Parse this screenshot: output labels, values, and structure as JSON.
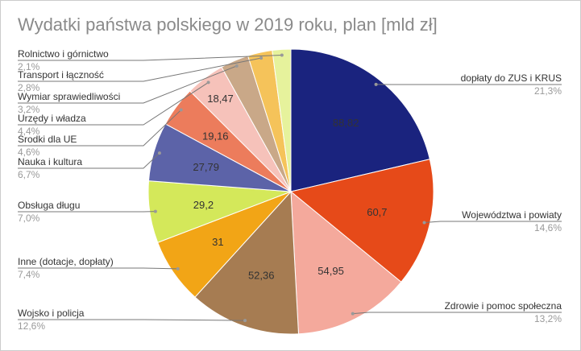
{
  "chart_data": {
    "type": "pie",
    "title": "Wydatki państwa polskiego w 2019 roku, plan [mld zł]",
    "slices": [
      {
        "label": "dopłaty do ZUS i KRUS",
        "value": 88.82,
        "value_label": "88,82",
        "percent": "21,3%",
        "color": "#1a237e"
      },
      {
        "label": "Województwa i powiaty",
        "value": 60.7,
        "value_label": "60,7",
        "percent": "14,6%",
        "color": "#e64a19"
      },
      {
        "label": "Zdrowie i pomoc społeczna",
        "value": 54.95,
        "value_label": "54,95",
        "percent": "13,2%",
        "color": "#f4a99c"
      },
      {
        "label": "Wojsko i policja",
        "value": 52.36,
        "value_label": "52,36",
        "percent": "12,6%",
        "color": "#a67c52"
      },
      {
        "label": "Inne (dotacje, dopłaty)",
        "value": 31,
        "value_label": "31",
        "percent": "7,4%",
        "color": "#f2a516"
      },
      {
        "label": "Obsługa długu",
        "value": 29.2,
        "value_label": "29,2",
        "percent": "7,0%",
        "color": "#d4e85a"
      },
      {
        "label": "Nauka i kultura",
        "value": 27.79,
        "value_label": "27,79",
        "percent": "6,7%",
        "color": "#5c63a8"
      },
      {
        "label": "Środki dla UE",
        "value": 19.16,
        "value_label": "19,16",
        "percent": "4,6%",
        "color": "#ec7c5c"
      },
      {
        "label": "Urzędy i władza",
        "value": 18.47,
        "value_label": "18,47",
        "percent": "4,4%",
        "color": "#f6c2ba"
      },
      {
        "label": "Wymiar sprawiedliwości",
        "value": 13.3,
        "value_label": "",
        "percent": "3,2%",
        "color": "#c9a888"
      },
      {
        "label": "Transport i łączność",
        "value": 11.6,
        "value_label": "",
        "percent": "2,8%",
        "color": "#f5c35a"
      },
      {
        "label": "Rolnictwo i górnictwo",
        "value": 8.7,
        "value_label": "",
        "percent": "2,1%",
        "color": "#e6f29c"
      }
    ]
  }
}
